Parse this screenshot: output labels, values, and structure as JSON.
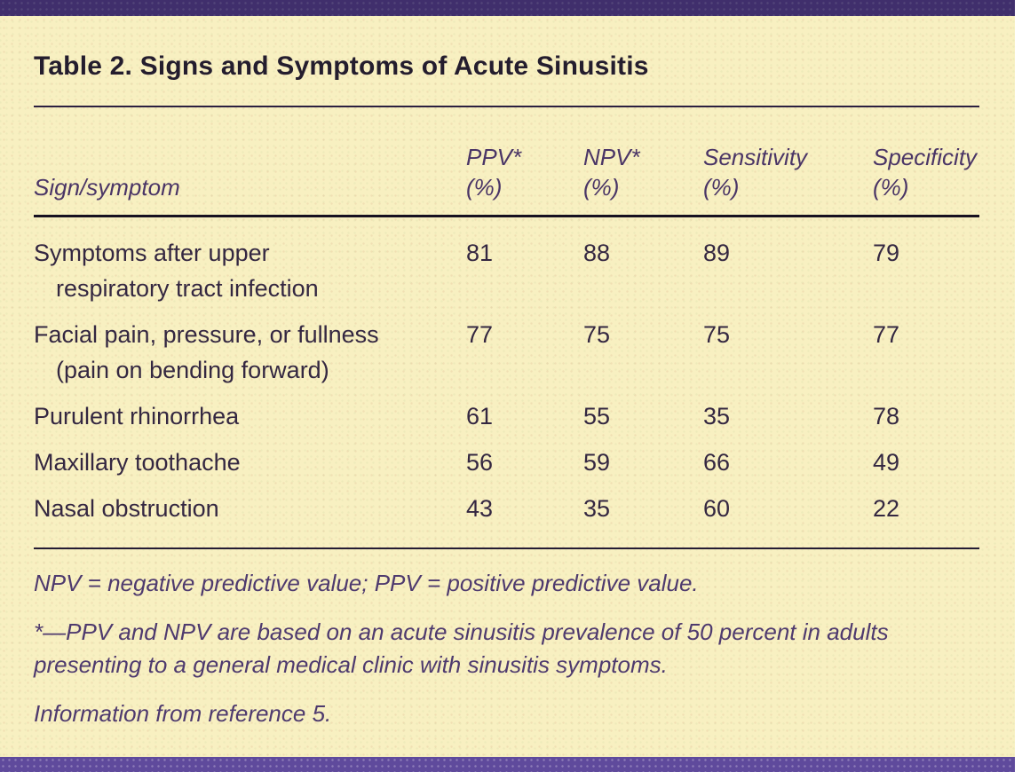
{
  "figure": {
    "title": "Table 2. Signs and Symptoms of Acute Sinusitis"
  },
  "table": {
    "columns": [
      {
        "label": "Sign/symptom"
      },
      {
        "label": "PPV*\n(%)"
      },
      {
        "label": "NPV*\n(%)"
      },
      {
        "label": "Sensitivity\n(%)"
      },
      {
        "label": "Specificity\n(%)"
      }
    ],
    "rows": [
      {
        "label": "Symptoms after upper",
        "label2": "respiratory tract infection",
        "ppv": "81",
        "npv": "88",
        "sensitivity": "89",
        "specificity": "79"
      },
      {
        "label": "Facial pain, pressure, or fullness",
        "label2": "(pain on bending forward)",
        "ppv": "77",
        "npv": "75",
        "sensitivity": "75",
        "specificity": "77"
      },
      {
        "label": "Purulent rhinorrhea",
        "ppv": "61",
        "npv": "55",
        "sensitivity": "35",
        "specificity": "78"
      },
      {
        "label": "Maxillary toothache",
        "ppv": "56",
        "npv": "59",
        "sensitivity": "66",
        "specificity": "49"
      },
      {
        "label": "Nasal obstruction",
        "ppv": "43",
        "npv": "35",
        "sensitivity": "60",
        "specificity": "22"
      }
    ]
  },
  "footnotes": [
    "NPV = negative predictive value; PPV = positive predictive value.",
    "*—PPV and NPV are based on an acute sinusitis prevalence of 50 percent in adults\npresenting to a general medical clinic with sinusitis symptoms.",
    "Information from reference 5."
  ],
  "colors": {
    "accent_purple_bar": "#5f4a9c",
    "panel_cream": "#f8f0c1",
    "title_text": "#241d2e",
    "header_italic_text": "#4a3566",
    "body_text": "#342741",
    "footnote_text": "#4e3a6e",
    "rule_dark": "#171020"
  }
}
